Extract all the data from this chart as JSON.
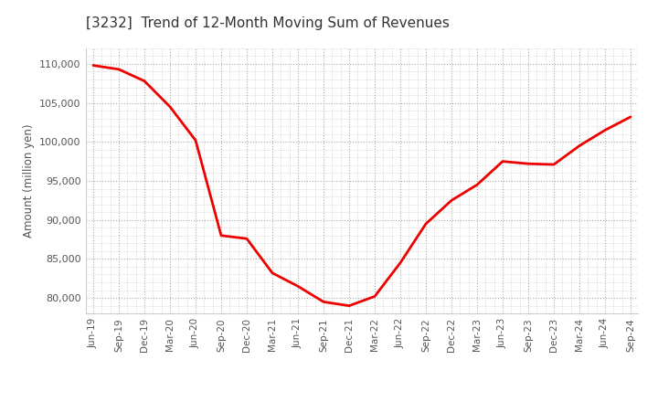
{
  "title": "[3232]  Trend of 12-Month Moving Sum of Revenues",
  "ylabel": "Amount (million yen)",
  "line_color": "#ee0000",
  "background_color": "#ffffff",
  "grid_color": "#aaaaaa",
  "x_labels": [
    "Jun-19",
    "Sep-19",
    "Dec-19",
    "Mar-20",
    "Jun-20",
    "Sep-20",
    "Dec-20",
    "Mar-21",
    "Jun-21",
    "Sep-21",
    "Dec-21",
    "Mar-22",
    "Jun-22",
    "Sep-22",
    "Dec-22",
    "Mar-23",
    "Jun-23",
    "Sep-23",
    "Dec-23",
    "Mar-24",
    "Jun-24",
    "Sep-24"
  ],
  "values": [
    109800,
    109300,
    107800,
    104500,
    100200,
    88000,
    87600,
    83200,
    81500,
    79500,
    79000,
    80200,
    84500,
    89500,
    92500,
    94500,
    97500,
    97200,
    97100,
    99500,
    101500,
    103200
  ],
  "ylim": [
    78000,
    112000
  ],
  "yticks": [
    80000,
    85000,
    90000,
    95000,
    100000,
    105000,
    110000
  ]
}
